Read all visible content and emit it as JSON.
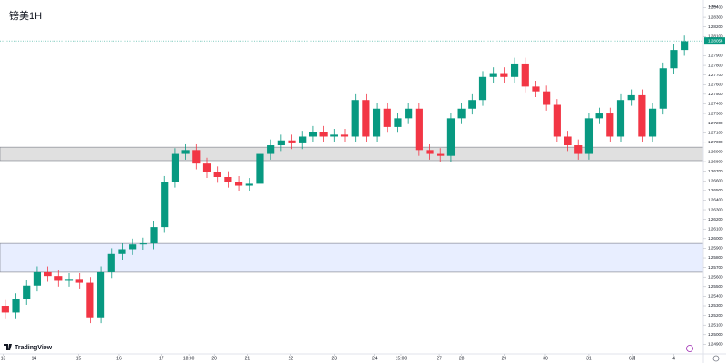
{
  "chart_data": {
    "type": "candlestick",
    "title": "镑美1H",
    "currency": "USD",
    "brand": "TradingView",
    "up_color": "#089981",
    "down_color": "#f23645",
    "grid": false,
    "xlim": [
      0,
      65
    ],
    "ylim": [
      1.248,
      1.2848
    ],
    "open": [
      1.253,
      1.2523,
      1.2537,
      1.2551,
      1.2565,
      1.2561,
      1.2556,
      1.2558,
      1.2554,
      1.2518,
      1.2565,
      1.2584,
      1.2589,
      1.2594,
      1.2595,
      1.2612,
      1.2659,
      1.2688,
      1.2692,
      1.2678,
      1.2669,
      1.2664,
      1.2659,
      1.2655,
      1.2657,
      1.2688,
      1.2697,
      1.2702,
      1.2699,
      1.2706,
      1.2711,
      1.2706,
      1.2708,
      1.2706,
      1.2744,
      1.2706,
      1.2735,
      1.2716,
      1.2725,
      1.2735,
      1.2692,
      1.2688,
      1.2686,
      1.2725,
      1.2735,
      1.2744,
      1.2768,
      1.2772,
      1.2768,
      1.2782,
      1.2758,
      1.2753,
      1.2739,
      1.2706,
      1.2697,
      1.2688,
      1.2725,
      1.273,
      1.2706,
      1.2744,
      1.2749,
      1.2706,
      1.2735,
      1.2777,
      1.2796
    ],
    "high": [
      1.2536,
      1.2543,
      1.2557,
      1.2571,
      1.2571,
      1.2567,
      1.2564,
      1.2564,
      1.256,
      1.2571,
      1.259,
      1.2595,
      1.26,
      1.2601,
      1.2618,
      1.2665,
      1.2694,
      1.2698,
      1.2698,
      1.2684,
      1.2675,
      1.267,
      1.2665,
      1.2663,
      1.2694,
      1.2703,
      1.2708,
      1.2708,
      1.2712,
      1.2717,
      1.2717,
      1.2714,
      1.2714,
      1.275,
      1.275,
      1.2741,
      1.2741,
      1.2731,
      1.2741,
      1.2741,
      1.2698,
      1.2694,
      1.2731,
      1.2741,
      1.275,
      1.2774,
      1.2778,
      1.2778,
      1.2788,
      1.2788,
      1.2764,
      1.2759,
      1.2745,
      1.2712,
      1.2703,
      1.2731,
      1.2736,
      1.2736,
      1.275,
      1.2755,
      1.2755,
      1.2741,
      1.2783,
      1.2802,
      1.2811
    ],
    "low": [
      1.2517,
      1.2517,
      1.2531,
      1.2545,
      1.2555,
      1.255,
      1.255,
      1.2548,
      1.2512,
      1.2512,
      1.2559,
      1.2578,
      1.2583,
      1.2588,
      1.2589,
      1.2606,
      1.2653,
      1.2682,
      1.2672,
      1.2663,
      1.2658,
      1.2653,
      1.2649,
      1.2649,
      1.2651,
      1.2682,
      1.2691,
      1.2693,
      1.2693,
      1.27,
      1.27,
      1.27,
      1.27,
      1.27,
      1.27,
      1.27,
      1.271,
      1.271,
      1.2719,
      1.2686,
      1.2682,
      1.268,
      1.268,
      1.2719,
      1.2729,
      1.2738,
      1.2762,
      1.2762,
      1.2762,
      1.2752,
      1.2747,
      1.2733,
      1.27,
      1.2691,
      1.2682,
      1.2682,
      1.2719,
      1.27,
      1.27,
      1.2738,
      1.27,
      1.27,
      1.2729,
      1.2771,
      1.279
    ],
    "close": [
      1.2523,
      1.2537,
      1.2551,
      1.2565,
      1.2561,
      1.2556,
      1.2558,
      1.2554,
      1.2518,
      1.2565,
      1.2584,
      1.2589,
      1.2594,
      1.2595,
      1.2612,
      1.2659,
      1.2688,
      1.2692,
      1.2678,
      1.2669,
      1.2664,
      1.2659,
      1.2655,
      1.2657,
      1.2688,
      1.2697,
      1.2702,
      1.2699,
      1.2706,
      1.2711,
      1.2706,
      1.2708,
      1.2706,
      1.2744,
      1.2706,
      1.2735,
      1.2716,
      1.2725,
      1.2735,
      1.2692,
      1.2688,
      1.2686,
      1.2725,
      1.2735,
      1.2744,
      1.2768,
      1.2772,
      1.2768,
      1.2782,
      1.2758,
      1.2753,
      1.2739,
      1.2706,
      1.2697,
      1.2688,
      1.2725,
      1.273,
      1.2706,
      1.2744,
      1.2749,
      1.2706,
      1.2735,
      1.2777,
      1.2796,
      1.2805
    ],
    "last_price": {
      "value": 1.28054,
      "label": "1.28054"
    },
    "zones": [
      {
        "from": 1.2681,
        "to": 1.2695,
        "color": "#e0e0e0"
      },
      {
        "from": 1.2565,
        "to": 1.2595,
        "color": "#e8eeff"
      }
    ],
    "xticks": [
      {
        "value": 0.3,
        "label": "13"
      },
      {
        "value": 3.2,
        "label": "14"
      },
      {
        "value": 7.4,
        "label": "15"
      },
      {
        "value": 11.2,
        "label": "16"
      },
      {
        "value": 15.2,
        "label": "17"
      },
      {
        "value": 17.8,
        "label": "18:00"
      },
      {
        "value": 20.2,
        "label": "20"
      },
      {
        "value": 23.3,
        "label": "21"
      },
      {
        "value": 27.4,
        "label": "22"
      },
      {
        "value": 31.5,
        "label": "23"
      },
      {
        "value": 35.3,
        "label": "24"
      },
      {
        "value": 37.8,
        "label": "15:00"
      },
      {
        "value": 41.4,
        "label": "27"
      },
      {
        "value": 43.5,
        "label": "28"
      },
      {
        "value": 47.5,
        "label": "29"
      },
      {
        "value": 51.4,
        "label": "30"
      },
      {
        "value": 55.5,
        "label": "31"
      },
      {
        "value": 59.6,
        "label": "6月"
      },
      {
        "value": 63.5,
        "label": "4"
      }
    ],
    "yticks": [
      {
        "value": 1.249,
        "label": "1.24900"
      },
      {
        "value": 1.25,
        "label": "1.25000"
      },
      {
        "value": 1.251,
        "label": "1.25100"
      },
      {
        "value": 1.252,
        "label": "1.25200"
      },
      {
        "value": 1.253,
        "label": "1.25300"
      },
      {
        "value": 1.254,
        "label": "1.25400"
      },
      {
        "value": 1.255,
        "label": "1.25500"
      },
      {
        "value": 1.256,
        "label": "1.25600"
      },
      {
        "value": 1.257,
        "label": "1.25700"
      },
      {
        "value": 1.258,
        "label": "1.25800"
      },
      {
        "value": 1.259,
        "label": "1.25900"
      },
      {
        "value": 1.26,
        "label": "1.26000"
      },
      {
        "value": 1.261,
        "label": "1.26100"
      },
      {
        "value": 1.262,
        "label": "1.26200"
      },
      {
        "value": 1.263,
        "label": "1.26300"
      },
      {
        "value": 1.264,
        "label": "1.26400"
      },
      {
        "value": 1.265,
        "label": "1.26500"
      },
      {
        "value": 1.266,
        "label": "1.26600"
      },
      {
        "value": 1.267,
        "label": "1.26700"
      },
      {
        "value": 1.268,
        "label": "1.26800"
      },
      {
        "value": 1.269,
        "label": "1.26900"
      },
      {
        "value": 1.27,
        "label": "1.27000"
      },
      {
        "value": 1.271,
        "label": "1.27100"
      },
      {
        "value": 1.272,
        "label": "1.27200"
      },
      {
        "value": 1.273,
        "label": "1.27300"
      },
      {
        "value": 1.274,
        "label": "1.27400"
      },
      {
        "value": 1.275,
        "label": "1.27500"
      },
      {
        "value": 1.276,
        "label": "1.27600"
      },
      {
        "value": 1.277,
        "label": "1.27700"
      },
      {
        "value": 1.278,
        "label": "1.27800"
      },
      {
        "value": 1.279,
        "label": "1.27900"
      },
      {
        "value": 1.281,
        "label": "1.28100"
      },
      {
        "value": 1.282,
        "label": "1.28200"
      },
      {
        "value": 1.283,
        "label": "1.28300"
      },
      {
        "value": 1.284,
        "label": "1.28400"
      }
    ]
  }
}
